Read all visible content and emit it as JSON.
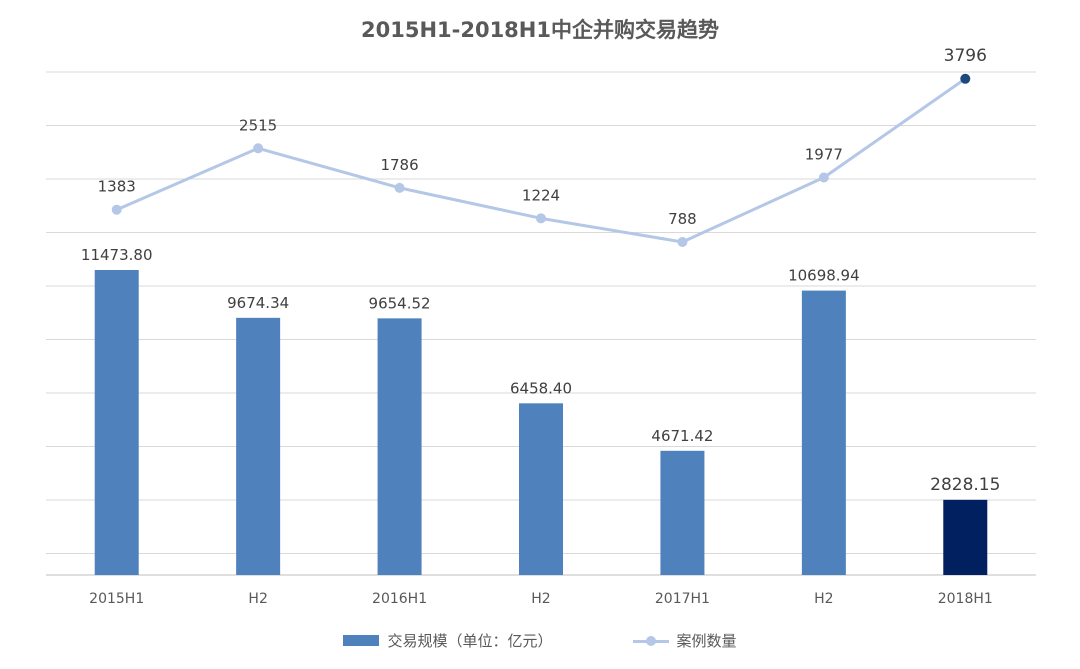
{
  "chart_data": {
    "type": "bar",
    "title": "2015H1-2018H1中企并购交易趋势",
    "categories": [
      "2015H1",
      "H2",
      "2016H1",
      "H2",
      "2017H1",
      "H2",
      "2018H1"
    ],
    "series": [
      {
        "name": "交易规模（单位：亿元）",
        "type": "bar",
        "values": [
          11473.8,
          9674.34,
          9654.52,
          6458.4,
          4671.42,
          10698.94,
          2828.15
        ],
        "labels": [
          "11473.80",
          "9674.34",
          "9654.52",
          "6458.40",
          "4671.42",
          "10698.94",
          "2828.15"
        ],
        "color": "#4f81bd",
        "highlight_color": "#002060",
        "highlight_index": 6
      },
      {
        "name": "案例数量",
        "type": "line",
        "values": [
          1383,
          2515,
          1786,
          1224,
          788,
          1977,
          3796
        ],
        "labels": [
          "1383",
          "2515",
          "1786",
          "1224",
          "788",
          "1977",
          "3796"
        ],
        "color": "#b4c7e7",
        "highlight_color": "#1f497d",
        "highlight_index": 6
      }
    ],
    "gridlines": true,
    "legend_position": "bottom",
    "axis_color": "#d9d9d9"
  }
}
